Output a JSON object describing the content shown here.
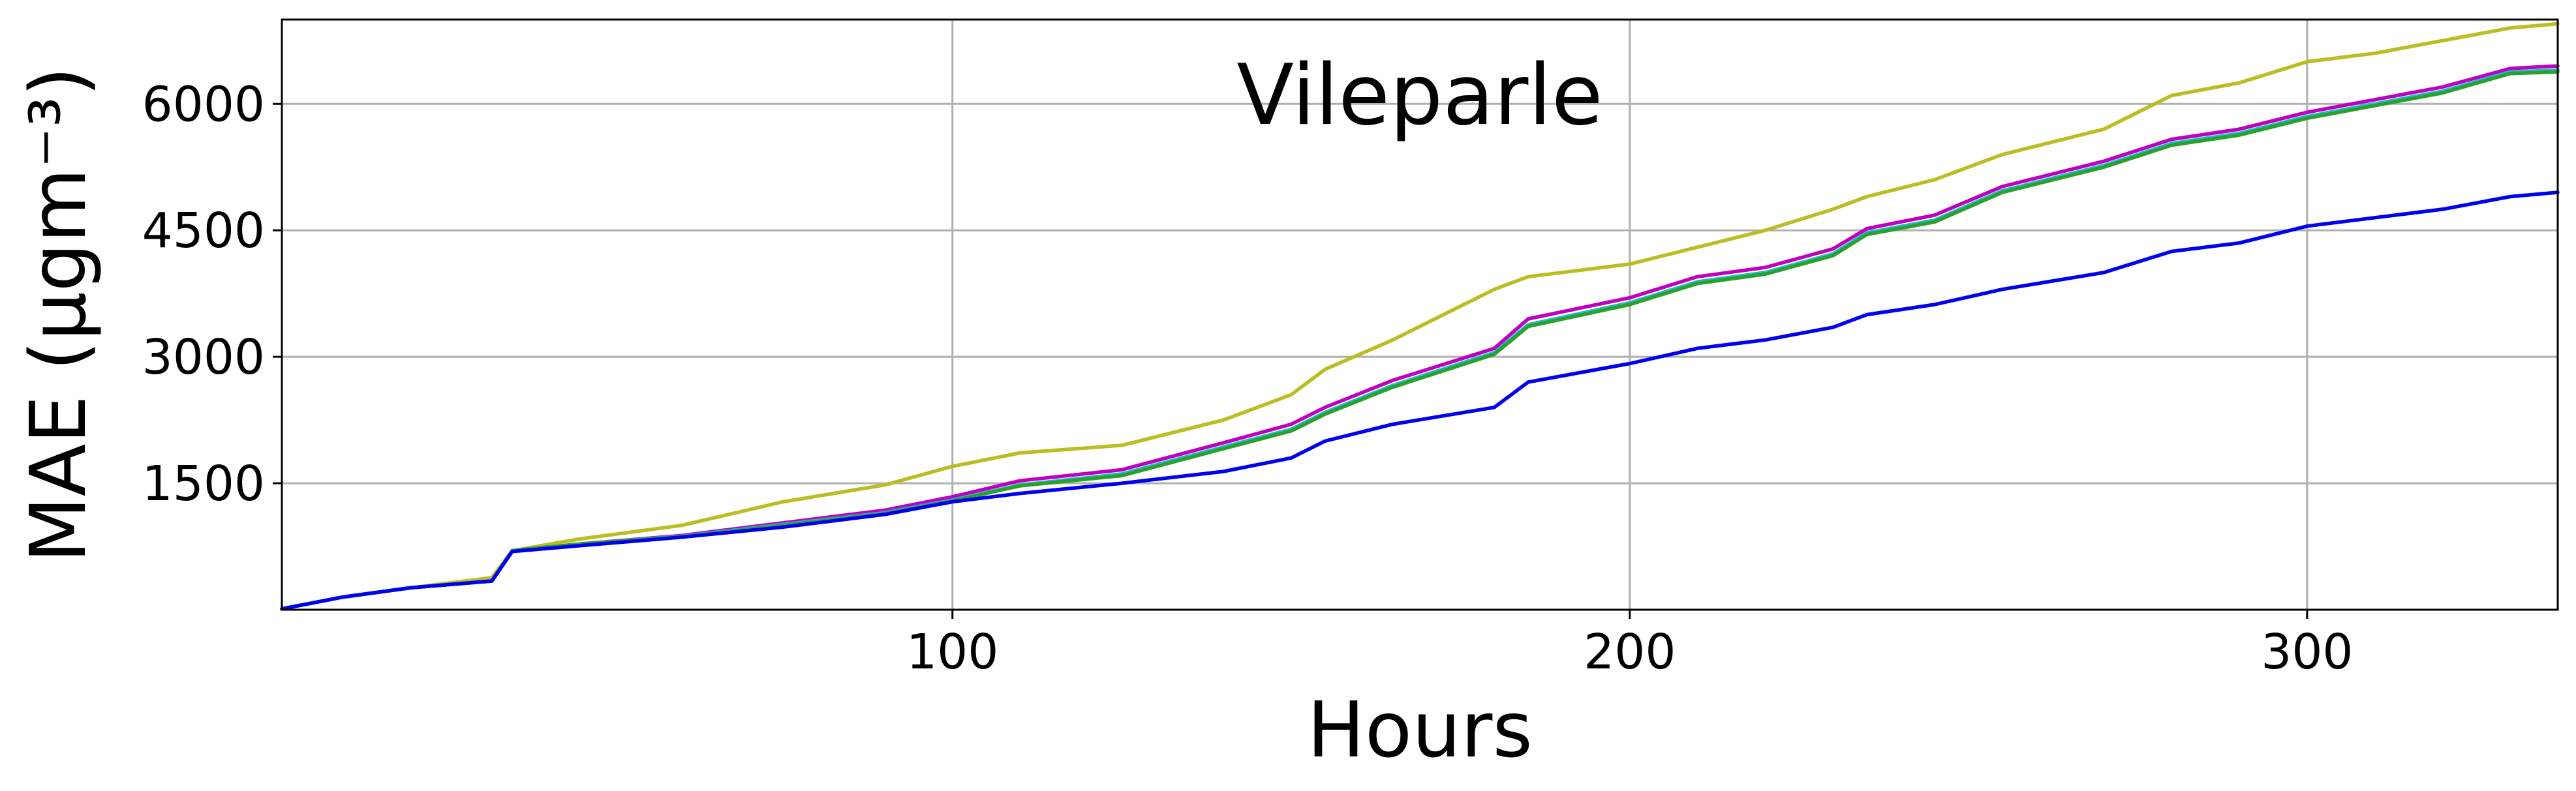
{
  "chart_data": {
    "type": "line",
    "title": "Vileparle",
    "xlabel": "Hours",
    "ylabel": "MAE (μgm⁻³)",
    "xlim": [
      1,
      337
    ],
    "ylim": [
      0,
      7000
    ],
    "x_ticks": [
      100,
      200,
      300
    ],
    "y_ticks": [
      1500,
      3000,
      4500,
      6000
    ],
    "grid": true,
    "legend": "none",
    "series": [
      {
        "color": "#bcbd22",
        "points": [
          [
            1,
            10
          ],
          [
            10,
            150
          ],
          [
            20,
            260
          ],
          [
            32,
            380
          ],
          [
            35,
            700
          ],
          [
            45,
            840
          ],
          [
            60,
            1000
          ],
          [
            75,
            1280
          ],
          [
            90,
            1480
          ],
          [
            100,
            1700
          ],
          [
            110,
            1860
          ],
          [
            125,
            1950
          ],
          [
            140,
            2250
          ],
          [
            150,
            2550
          ],
          [
            155,
            2850
          ],
          [
            165,
            3200
          ],
          [
            180,
            3800
          ],
          [
            185,
            3950
          ],
          [
            200,
            4100
          ],
          [
            210,
            4300
          ],
          [
            220,
            4500
          ],
          [
            230,
            4750
          ],
          [
            235,
            4900
          ],
          [
            245,
            5100
          ],
          [
            255,
            5400
          ],
          [
            270,
            5700
          ],
          [
            280,
            6100
          ],
          [
            290,
            6250
          ],
          [
            300,
            6500
          ],
          [
            310,
            6600
          ],
          [
            320,
            6750
          ],
          [
            330,
            6900
          ],
          [
            337,
            6950
          ]
        ]
      },
      {
        "color": "#c000c0",
        "points": [
          [
            1,
            10
          ],
          [
            10,
            150
          ],
          [
            20,
            260
          ],
          [
            32,
            340
          ],
          [
            35,
            700
          ],
          [
            45,
            780
          ],
          [
            60,
            880
          ],
          [
            75,
            1030
          ],
          [
            90,
            1180
          ],
          [
            100,
            1340
          ],
          [
            110,
            1530
          ],
          [
            125,
            1660
          ],
          [
            140,
            1980
          ],
          [
            150,
            2200
          ],
          [
            155,
            2400
          ],
          [
            165,
            2720
          ],
          [
            180,
            3100
          ],
          [
            185,
            3450
          ],
          [
            200,
            3700
          ],
          [
            210,
            3950
          ],
          [
            220,
            4060
          ],
          [
            230,
            4280
          ],
          [
            235,
            4520
          ],
          [
            245,
            4680
          ],
          [
            255,
            5020
          ],
          [
            270,
            5320
          ],
          [
            280,
            5580
          ],
          [
            290,
            5700
          ],
          [
            300,
            5900
          ],
          [
            310,
            6050
          ],
          [
            320,
            6200
          ],
          [
            330,
            6420
          ],
          [
            337,
            6450
          ]
        ]
      },
      {
        "color": "#17becf",
        "points": [
          [
            1,
            10
          ],
          [
            10,
            150
          ],
          [
            20,
            260
          ],
          [
            32,
            340
          ],
          [
            35,
            700
          ],
          [
            45,
            780
          ],
          [
            60,
            870
          ],
          [
            75,
            1010
          ],
          [
            90,
            1150
          ],
          [
            100,
            1300
          ],
          [
            110,
            1480
          ],
          [
            125,
            1610
          ],
          [
            140,
            1930
          ],
          [
            150,
            2140
          ],
          [
            155,
            2340
          ],
          [
            165,
            2660
          ],
          [
            180,
            3050
          ],
          [
            185,
            3380
          ],
          [
            200,
            3640
          ],
          [
            210,
            3890
          ],
          [
            220,
            4000
          ],
          [
            230,
            4220
          ],
          [
            235,
            4470
          ],
          [
            245,
            4620
          ],
          [
            255,
            4970
          ],
          [
            270,
            5270
          ],
          [
            280,
            5530
          ],
          [
            290,
            5650
          ],
          [
            300,
            5850
          ],
          [
            310,
            6000
          ],
          [
            320,
            6150
          ],
          [
            330,
            6380
          ],
          [
            337,
            6400
          ]
        ]
      },
      {
        "color": "#2ca02c",
        "points": [
          [
            1,
            10
          ],
          [
            10,
            150
          ],
          [
            20,
            260
          ],
          [
            32,
            340
          ],
          [
            35,
            700
          ],
          [
            45,
            780
          ],
          [
            60,
            865
          ],
          [
            75,
            1000
          ],
          [
            90,
            1140
          ],
          [
            100,
            1290
          ],
          [
            110,
            1470
          ],
          [
            125,
            1590
          ],
          [
            140,
            1910
          ],
          [
            150,
            2120
          ],
          [
            155,
            2320
          ],
          [
            165,
            2640
          ],
          [
            180,
            3030
          ],
          [
            185,
            3360
          ],
          [
            200,
            3620
          ],
          [
            210,
            3870
          ],
          [
            220,
            3980
          ],
          [
            230,
            4200
          ],
          [
            235,
            4450
          ],
          [
            245,
            4600
          ],
          [
            255,
            4950
          ],
          [
            270,
            5250
          ],
          [
            280,
            5510
          ],
          [
            290,
            5630
          ],
          [
            300,
            5830
          ],
          [
            310,
            5980
          ],
          [
            320,
            6130
          ],
          [
            330,
            6360
          ],
          [
            337,
            6380
          ]
        ]
      },
      {
        "color": "#0000ee",
        "points": [
          [
            1,
            10
          ],
          [
            10,
            150
          ],
          [
            20,
            260
          ],
          [
            32,
            340
          ],
          [
            35,
            690
          ],
          [
            45,
            760
          ],
          [
            60,
            860
          ],
          [
            75,
            980
          ],
          [
            90,
            1130
          ],
          [
            100,
            1280
          ],
          [
            110,
            1380
          ],
          [
            125,
            1500
          ],
          [
            140,
            1640
          ],
          [
            150,
            1800
          ],
          [
            155,
            2000
          ],
          [
            165,
            2200
          ],
          [
            180,
            2400
          ],
          [
            185,
            2700
          ],
          [
            200,
            2920
          ],
          [
            210,
            3100
          ],
          [
            220,
            3200
          ],
          [
            230,
            3350
          ],
          [
            235,
            3500
          ],
          [
            245,
            3620
          ],
          [
            255,
            3800
          ],
          [
            270,
            4000
          ],
          [
            280,
            4250
          ],
          [
            290,
            4350
          ],
          [
            300,
            4550
          ],
          [
            310,
            4650
          ],
          [
            320,
            4750
          ],
          [
            330,
            4900
          ],
          [
            337,
            4950
          ]
        ]
      }
    ]
  }
}
